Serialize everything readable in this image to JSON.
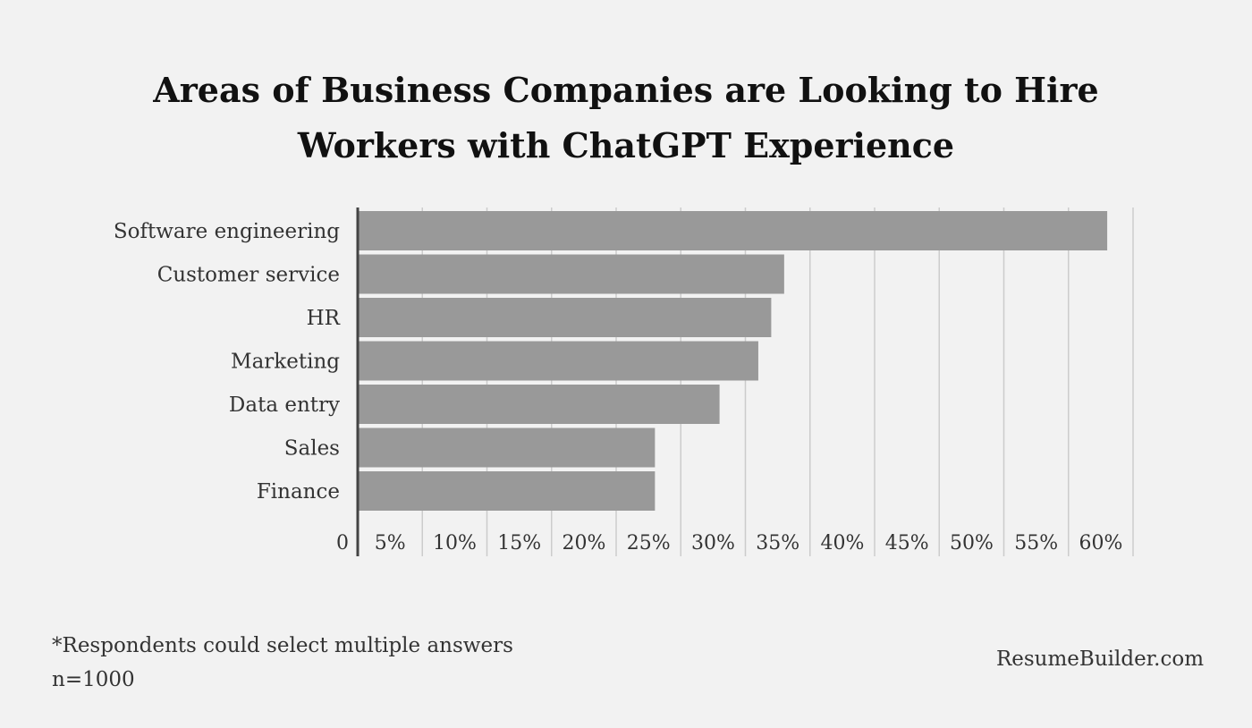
{
  "colors": {
    "background": "#f2f2f2",
    "bar": "#999999",
    "grid": "#cccccc",
    "axis": "#444444",
    "text": "#333333"
  },
  "chart_data": {
    "type": "bar",
    "orientation": "horizontal",
    "title": "Areas of Business Companies are Looking to Hire Workers with ChatGPT Experience",
    "categories": [
      "Software engineering",
      "Customer service",
      "HR",
      "Marketing",
      "Data entry",
      "Sales",
      "Finance"
    ],
    "values": [
      58,
      33,
      32,
      31,
      28,
      23,
      23
    ],
    "value_unit": "%",
    "xlim": [
      0,
      60
    ],
    "x_ticks": [
      0,
      5,
      10,
      15,
      20,
      25,
      30,
      35,
      40,
      45,
      50,
      55,
      60
    ],
    "x_tick_labels": [
      "0",
      "5%",
      "10%",
      "15%",
      "20%",
      "25%",
      "30%",
      "35%",
      "40%",
      "45%",
      "50%",
      "55%",
      "60%"
    ],
    "xlabel": "",
    "ylabel": "",
    "grid": "vertical",
    "legend": "none"
  },
  "footnote": {
    "line1": "*Respondents could select multiple answers",
    "line2": "n=1000"
  },
  "brand": "ResumeBuilder.com"
}
